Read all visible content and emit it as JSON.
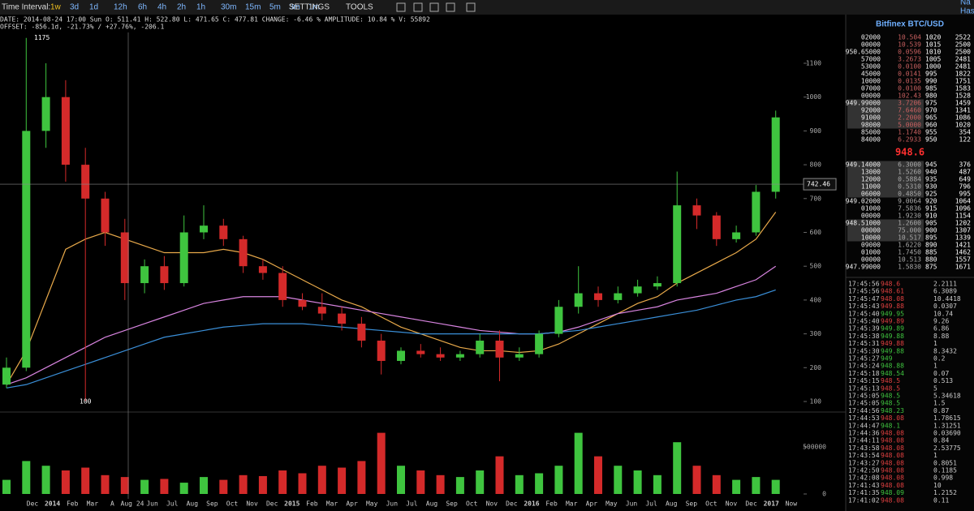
{
  "toolbar": {
    "label": "Time Interval:",
    "intervals": [
      "1w",
      "3d",
      "1d",
      "12h",
      "6h",
      "4h",
      "2h",
      "1h",
      "30m",
      "15m",
      "5m",
      "3m",
      "1m"
    ],
    "active": "1w",
    "menus": [
      "SETTINGS",
      "TOOLS"
    ]
  },
  "info": {
    "line1": "DATE: 2014-08-24 17:00 Sun   O: 511.41   H: 522.80   L: 471.65   C: 477.81   CHANGE: -6.46 %   AMPLITUDE: 10.84 %   V: 55892",
    "line2": "OFFSET: -856.1d, -21.73% / +27.76%, -206.1"
  },
  "chart": {
    "ylim": [
      100,
      1100
    ],
    "yticks": [
      100,
      200,
      300,
      400,
      500,
      600,
      700,
      800,
      900,
      1000,
      1100
    ],
    "vlim": [
      0,
      500000
    ],
    "vticks": [
      0,
      500000
    ],
    "crosshair": {
      "value": 742.46,
      "label": "742.46"
    },
    "annotations": [
      {
        "value": 1175,
        "label": "1175"
      },
      {
        "value": 100,
        "label": "100"
      }
    ],
    "xlabels": [
      "Dec",
      "2014",
      "Feb",
      "Mar",
      "A",
      "Aug 24",
      "Jun",
      "Jul",
      "Aug",
      "Sep",
      "Oct",
      "Nov",
      "Dec",
      "2015",
      "Feb",
      "Mar",
      "Apr",
      "May",
      "Jun",
      "Jul",
      "Aug",
      "Sep",
      "Oct",
      "Nov",
      "Dec",
      "2016",
      "Feb",
      "Mar",
      "Apr",
      "May",
      "Jun",
      "Jul",
      "Aug",
      "Sep",
      "Oct",
      "Nov",
      "Dec",
      "2017",
      "Now"
    ],
    "up_color": "#3fc43f",
    "down_color": "#d42a2a",
    "open": [
      150,
      200,
      900,
      1000,
      800,
      700,
      600,
      450,
      500,
      450,
      600,
      620,
      580,
      500,
      480,
      400,
      380,
      360,
      330,
      280,
      220,
      250,
      240,
      230,
      240,
      280,
      230,
      240,
      300,
      380,
      420,
      400,
      420,
      440,
      450,
      680,
      650,
      580,
      600,
      720
    ],
    "high": [
      230,
      1175,
      1100,
      1050,
      850,
      720,
      640,
      520,
      530,
      650,
      680,
      640,
      590,
      520,
      500,
      420,
      420,
      380,
      350,
      300,
      260,
      270,
      260,
      250,
      300,
      310,
      260,
      310,
      400,
      500,
      440,
      440,
      460,
      470,
      780,
      700,
      660,
      620,
      740,
      960
    ],
    "low": [
      140,
      190,
      850,
      750,
      100,
      560,
      400,
      420,
      430,
      440,
      580,
      560,
      480,
      460,
      380,
      370,
      340,
      310,
      260,
      180,
      210,
      230,
      220,
      220,
      230,
      160,
      220,
      230,
      290,
      360,
      380,
      390,
      410,
      430,
      440,
      610,
      560,
      570,
      590,
      700
    ],
    "close": [
      200,
      900,
      1000,
      800,
      700,
      600,
      450,
      500,
      450,
      600,
      620,
      580,
      500,
      480,
      400,
      380,
      360,
      330,
      280,
      220,
      250,
      240,
      230,
      240,
      280,
      230,
      240,
      300,
      380,
      420,
      400,
      420,
      440,
      450,
      680,
      650,
      580,
      600,
      720,
      940
    ],
    "volume": [
      150000,
      350000,
      300000,
      250000,
      280000,
      200000,
      180000,
      150000,
      160000,
      120000,
      180000,
      150000,
      200000,
      190000,
      250000,
      220000,
      300000,
      280000,
      350000,
      650000,
      300000,
      250000,
      200000,
      180000,
      250000,
      400000,
      200000,
      220000,
      300000,
      650000,
      400000,
      300000,
      250000,
      200000,
      550000,
      300000,
      200000,
      150000,
      180000,
      150000
    ],
    "overlays": [
      {
        "color": "#e8a94a",
        "values": [
          150,
          250,
          400,
          550,
          580,
          600,
          580,
          560,
          540,
          540,
          540,
          550,
          540,
          520,
          490,
          460,
          430,
          400,
          380,
          350,
          320,
          300,
          280,
          260,
          250,
          250,
          245,
          250,
          270,
          300,
          330,
          360,
          390,
          410,
          450,
          480,
          510,
          540,
          580,
          660
        ]
      },
      {
        "color": "#d884e0",
        "values": [
          150,
          170,
          200,
          230,
          260,
          290,
          310,
          330,
          350,
          370,
          390,
          400,
          410,
          410,
          410,
          400,
          390,
          380,
          370,
          360,
          350,
          340,
          330,
          320,
          310,
          305,
          300,
          300,
          305,
          320,
          340,
          360,
          370,
          380,
          400,
          410,
          420,
          440,
          460,
          500
        ]
      },
      {
        "color": "#3a8fd8",
        "values": [
          140,
          150,
          170,
          190,
          210,
          230,
          250,
          270,
          290,
          300,
          310,
          320,
          325,
          330,
          330,
          330,
          325,
          320,
          315,
          310,
          305,
          300,
          300,
          300,
          300,
          300,
          300,
          300,
          305,
          310,
          320,
          330,
          340,
          350,
          360,
          370,
          385,
          400,
          410,
          430
        ]
      }
    ]
  },
  "sidebar": {
    "title": "Bitfinex BTC/USD",
    "corner": [
      "Na",
      "Has"
    ],
    "last_price": "948.6",
    "asks": [
      [
        "02000",
        "10.504",
        "1020",
        "2522"
      ],
      [
        "00000",
        "10.539",
        "1015",
        "2500"
      ],
      [
        "950.65000",
        "0.0596",
        "1010",
        "2500"
      ],
      [
        "57000",
        "3.2673",
        "1005",
        "2481"
      ],
      [
        "53000",
        "0.0100",
        "1000",
        "2481"
      ],
      [
        "45000",
        "0.0141",
        "995",
        "1822"
      ],
      [
        "10000",
        "0.0135",
        "990",
        "1751"
      ],
      [
        "07000",
        "0.0100",
        "985",
        "1583"
      ],
      [
        "00000",
        "102.43",
        "980",
        "1528"
      ],
      [
        "949.99000",
        "3.7206",
        "975",
        "1459"
      ],
      [
        "92000",
        "7.6460",
        "970",
        "1341"
      ],
      [
        "91000",
        "2.2000",
        "965",
        "1086"
      ],
      [
        "98000",
        "5.0000",
        "960",
        "1020"
      ],
      [
        "85000",
        "1.1740",
        "955",
        "354"
      ],
      [
        "84000",
        "6.2933",
        "950",
        "122"
      ]
    ],
    "bids": [
      [
        "949.14000",
        "6.3000",
        "945",
        "376"
      ],
      [
        "13000",
        "1.5260",
        "940",
        "487"
      ],
      [
        "12000",
        "0.5884",
        "935",
        "649"
      ],
      [
        "11000",
        "0.5310",
        "930",
        "796"
      ],
      [
        "06000",
        "0.4850",
        "925",
        "995"
      ],
      [
        "949.02000",
        "9.0064",
        "920",
        "1064"
      ],
      [
        "01000",
        "7.5836",
        "915",
        "1096"
      ],
      [
        "00000",
        "1.9230",
        "910",
        "1154"
      ],
      [
        "948.51000",
        "1.2600",
        "905",
        "1202"
      ],
      [
        "00000",
        "75.000",
        "900",
        "1307"
      ],
      [
        "10000",
        "10.517",
        "895",
        "1339"
      ],
      [
        "09000",
        "1.6220",
        "890",
        "1421"
      ],
      [
        "01000",
        "1.7450",
        "885",
        "1462"
      ],
      [
        "00000",
        "10.513",
        "880",
        "1557"
      ],
      [
        "947.99000",
        "1.5830",
        "875",
        "1671"
      ]
    ],
    "trades": [
      {
        "time": "17:45:56",
        "price": "948.6",
        "amount": "2.2111",
        "color": "#e04040"
      },
      {
        "time": "17:45:56",
        "price": "948.61",
        "amount": "6.3089",
        "color": "#e04040"
      },
      {
        "time": "17:45:47",
        "price": "948.08",
        "amount": "10.4418",
        "color": "#e04040"
      },
      {
        "time": "17:45:43",
        "price": "949.88",
        "amount": "0.0307",
        "color": "#e04040"
      },
      {
        "time": "17:45:40",
        "price": "949.95",
        "amount": "10.74",
        "color": "#3fc43f"
      },
      {
        "time": "17:45:40",
        "price": "949.89",
        "amount": "9.26",
        "color": "#e04040"
      },
      {
        "time": "17:45:39",
        "price": "949.89",
        "amount": "6.86",
        "color": "#3fc43f"
      },
      {
        "time": "17:45:38",
        "price": "949.88",
        "amount": "8.88",
        "color": "#3fc43f"
      },
      {
        "time": "17:45:31",
        "price": "949.88",
        "amount": "1",
        "color": "#e04040"
      },
      {
        "time": "17:45:30",
        "price": "949.88",
        "amount": "8.3432",
        "color": "#3fc43f"
      },
      {
        "time": "17:45:27",
        "price": "949",
        "amount": "0.2",
        "color": "#3fc43f"
      },
      {
        "time": "17:45:24",
        "price": "948.88",
        "amount": "1",
        "color": "#3fc43f"
      },
      {
        "time": "17:45:18",
        "price": "948.54",
        "amount": "0.07",
        "color": "#3fc43f"
      },
      {
        "time": "17:45:15",
        "price": "948.5",
        "amount": "0.513",
        "color": "#e04040"
      },
      {
        "time": "17:45:13",
        "price": "948.5",
        "amount": "5",
        "color": "#e04040"
      },
      {
        "time": "17:45:05",
        "price": "948.5",
        "amount": "5.34618",
        "color": "#3fc43f"
      },
      {
        "time": "17:45:05",
        "price": "948.5",
        "amount": "1.5",
        "color": "#3fc43f"
      },
      {
        "time": "17:44:56",
        "price": "948.23",
        "amount": "0.87",
        "color": "#3fc43f"
      },
      {
        "time": "17:44:53",
        "price": "948.08",
        "amount": "1.78615",
        "color": "#e04040"
      },
      {
        "time": "17:44:47",
        "price": "948.1",
        "amount": "1.31251",
        "color": "#3fc43f"
      },
      {
        "time": "17:44:36",
        "price": "948.08",
        "amount": "0.03690",
        "color": "#e04040"
      },
      {
        "time": "17:44:11",
        "price": "948.08",
        "amount": "0.84",
        "color": "#e04040"
      },
      {
        "time": "17:43:58",
        "price": "948.08",
        "amount": "2.53775",
        "color": "#e04040"
      },
      {
        "time": "17:43:54",
        "price": "948.08",
        "amount": "1",
        "color": "#e04040"
      },
      {
        "time": "17:43:27",
        "price": "948.08",
        "amount": "0.8051",
        "color": "#e04040"
      },
      {
        "time": "17:42:50",
        "price": "948.08",
        "amount": "0.1185",
        "color": "#e04040"
      },
      {
        "time": "17:42:08",
        "price": "948.08",
        "amount": "0.998",
        "color": "#e04040"
      },
      {
        "time": "17:41:43",
        "price": "948.08",
        "amount": "10",
        "color": "#e04040"
      },
      {
        "time": "17:41:35",
        "price": "948.09",
        "amount": "1.2152",
        "color": "#3fc43f"
      },
      {
        "time": "17:41:02",
        "price": "948.08",
        "amount": "0.11",
        "color": "#e04040"
      }
    ]
  }
}
